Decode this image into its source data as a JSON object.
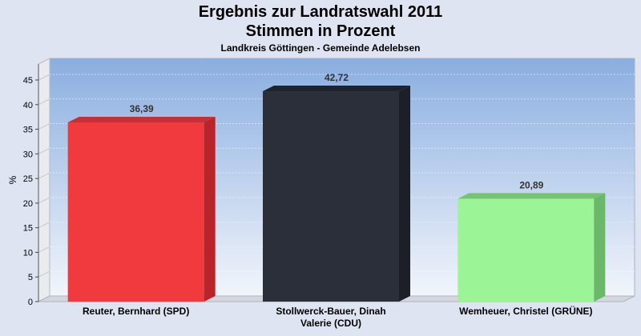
{
  "chart_data": {
    "type": "bar",
    "title_line1": "Ergebnis zur Landratswahl 2011",
    "title_line2": "Stimmen in Prozent",
    "subtitle": "Landkreis Göttingen - Gemeinde Adelebsen",
    "ylabel": "%",
    "ylim": [
      0,
      48
    ],
    "yticks": [
      0,
      5,
      10,
      15,
      20,
      25,
      30,
      35,
      40,
      45
    ],
    "grid": true,
    "bars": [
      {
        "label_lines": [
          "Reuter, Bernhard (SPD)"
        ],
        "value": 36.39,
        "value_label": "36,39",
        "color": "#f03a3e",
        "side_color": "#b8242a",
        "top_color": "#c43036"
      },
      {
        "label_lines": [
          "Stollwerck-Bauer, Dinah",
          "Valerie (CDU)"
        ],
        "value": 42.72,
        "value_label": "42,72",
        "color": "#2b2f3a",
        "side_color": "#1c1f27",
        "top_color": "#1f222b"
      },
      {
        "label_lines": [
          "Wemheuer, Christel (GRÜNE)"
        ],
        "value": 20.89,
        "value_label": "20,89",
        "color": "#9bf496",
        "side_color": "#6cb86a",
        "top_color": "#74c470"
      }
    ]
  }
}
